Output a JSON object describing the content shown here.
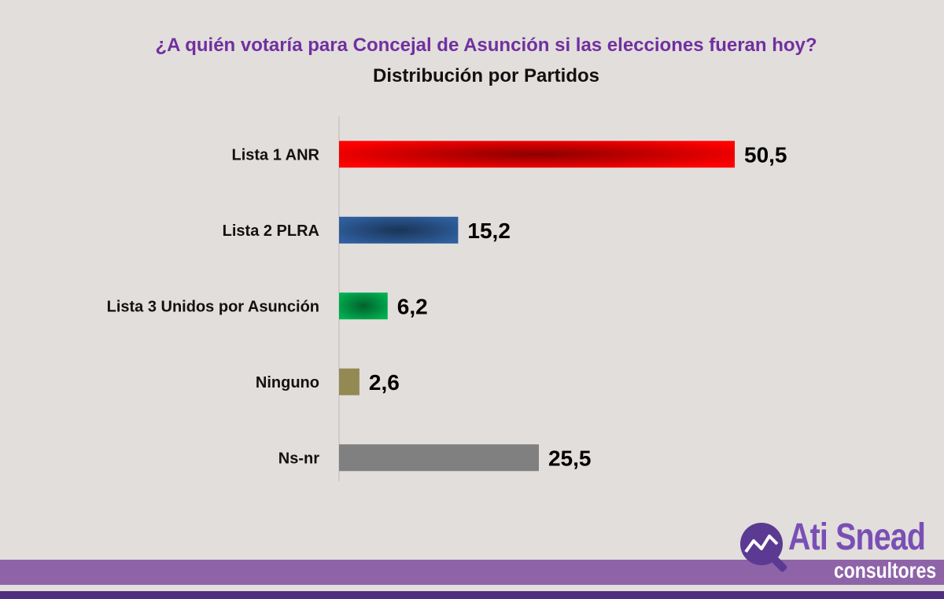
{
  "chart_data": {
    "type": "bar",
    "orientation": "horizontal",
    "title": "¿A quién votaría para Concejal de Asunción si las elecciones fueran hoy?",
    "subtitle": "Distribución por Partidos",
    "categories": [
      "Lista 1 ANR",
      "Lista 2 PLRA",
      "Lista 3 Unidos por Asunción",
      "Ninguno",
      "Ns-nr"
    ],
    "values": [
      50.5,
      15.2,
      6.2,
      2.6,
      25.5
    ],
    "value_labels": [
      "50,5",
      "15,2",
      "6,2",
      "2,6",
      "25,5"
    ],
    "bar_colors": [
      "#ff0000",
      "#2f5f9e",
      "#00b050",
      "#938953",
      "#808080"
    ],
    "xlim": [
      0,
      50.5
    ],
    "grid": false,
    "legend": "none"
  },
  "colors": {
    "title": "#7030a0",
    "background": "#e2dedc",
    "footer_band": "#8e63a8",
    "footer_line": "#4f2d7f"
  },
  "branding": {
    "logo_name": "Ati Snead",
    "logo_sub": "consultores",
    "logo_icon": "chart-line-magnifier-icon"
  }
}
